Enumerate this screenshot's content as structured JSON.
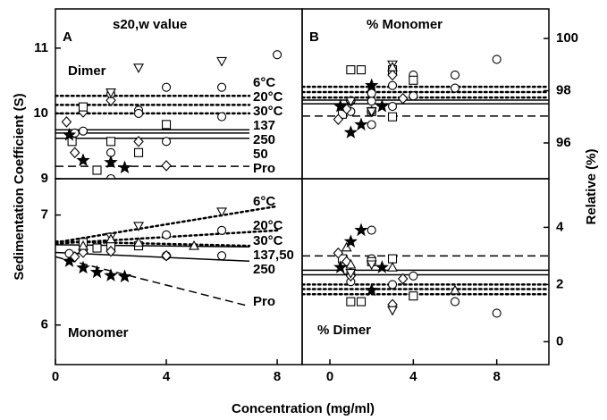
{
  "chart_data": [
    {
      "type": "scatter",
      "letter": "A",
      "title": "s20,w value",
      "region_label": "Dimer",
      "xlim": [
        0,
        8.9
      ],
      "ylim": [
        9,
        11.6
      ],
      "yticks": [
        9,
        10,
        11
      ],
      "series": [
        {
          "marker": "diamond",
          "x": [
            0.4,
            0.7,
            1.0,
            2.0,
            3.0,
            4.0
          ],
          "values": [
            9.87,
            9.4,
            10.02,
            10.2,
            9.57,
            9.2
          ]
        },
        {
          "marker": "circle",
          "x": [
            0.7,
            1.0,
            2.0,
            2.0,
            2.0,
            3.0,
            3.0,
            4.0,
            4.0,
            6.0,
            6.0,
            8.0
          ],
          "values": [
            9.7,
            9.73,
            10.3,
            9.0,
            9.4,
            10.05,
            10.0,
            10.4,
            9.57,
            10.4,
            9.95,
            10.9
          ]
        },
        {
          "marker": "square",
          "x": [
            0.6,
            1.0,
            1.5,
            2.0,
            3.0,
            4.0
          ],
          "values": [
            9.57,
            10.1,
            9.13,
            9.57,
            9.4,
            9.83
          ]
        },
        {
          "marker": "triangle-down",
          "x": [
            2.0,
            3.0,
            6.0
          ],
          "values": [
            10.32,
            10.7,
            10.8
          ]
        },
        {
          "marker": "star",
          "x": [
            0.5,
            1.0,
            2.0,
            2.5
          ],
          "values": [
            9.67,
            9.28,
            9.25,
            9.17
          ]
        }
      ],
      "lines": [
        {
          "label": "6°C",
          "style": "dotted",
          "x": [
            0,
            7
          ],
          "values": [
            10.27,
            10.27
          ]
        },
        {
          "label": "20°C",
          "style": "dotted",
          "x": [
            0,
            7
          ],
          "values": [
            10.13,
            10.13
          ]
        },
        {
          "label": "30°C",
          "style": "dotted",
          "x": [
            0,
            7
          ],
          "values": [
            10.0,
            10.0
          ]
        },
        {
          "label": "137",
          "style": "solid",
          "x": [
            0,
            7
          ],
          "values": [
            9.75,
            9.75
          ]
        },
        {
          "label": "250",
          "style": "solid",
          "x": [
            0,
            7
          ],
          "values": [
            9.7,
            9.7
          ]
        },
        {
          "label": "50",
          "style": "solid",
          "x": [
            0,
            7
          ],
          "values": [
            9.62,
            9.62
          ]
        },
        {
          "label": "Pro",
          "style": "dashed",
          "x": [
            0,
            7
          ],
          "values": [
            9.19,
            9.19
          ]
        }
      ]
    },
    {
      "type": "scatter",
      "region_label": "Monomer",
      "xlim": [
        0,
        8.9
      ],
      "ylim": [
        5.64,
        7.33
      ],
      "yticks": [
        6,
        7
      ],
      "xticks": [
        0,
        4,
        8
      ],
      "series": [
        {
          "marker": "star",
          "x": [
            0.5,
            1.0,
            1.5,
            2.0,
            2.5
          ],
          "values": [
            6.58,
            6.52,
            6.48,
            6.45,
            6.44
          ]
        },
        {
          "marker": "circle",
          "x": [
            0.5,
            1.0,
            2.0,
            3.0,
            4.0,
            4.0,
            6.0,
            6.0
          ],
          "values": [
            6.65,
            6.68,
            6.75,
            6.72,
            6.82,
            6.63,
            6.86,
            6.63
          ]
        },
        {
          "marker": "square",
          "x": [
            1.0,
            1.5,
            2.0,
            3.0
          ],
          "values": [
            6.75,
            6.7,
            6.72,
            6.72
          ]
        },
        {
          "marker": "diamond",
          "x": [
            0.7,
            1.0,
            2.0,
            4.0
          ],
          "values": [
            6.62,
            6.66,
            6.67,
            6.63
          ]
        },
        {
          "marker": "triangle-down",
          "x": [
            2.0,
            3.0,
            6.0
          ],
          "values": [
            6.8,
            6.9,
            7.03
          ]
        },
        {
          "marker": "triangle-up",
          "x": [
            1.0,
            2.0,
            3.0,
            5.0
          ],
          "values": [
            6.72,
            6.78,
            6.75,
            6.72
          ]
        }
      ],
      "lines": [
        {
          "label": "6°C",
          "style": "dotted",
          "x": [
            0,
            8
          ],
          "values": [
            6.75,
            7.08
          ]
        },
        {
          "label": "20°C",
          "style": "dotted",
          "x": [
            0,
            8
          ],
          "values": [
            6.74,
            6.86
          ]
        },
        {
          "label": "30°C",
          "style": "dotted",
          "x": [
            0,
            7
          ],
          "values": [
            6.76,
            6.72
          ]
        },
        {
          "label": "137,50",
          "style": "solid",
          "x": [
            0,
            7
          ],
          "values": [
            6.73,
            6.71
          ]
        },
        {
          "label": "250",
          "style": "solid",
          "x": [
            0,
            7
          ],
          "values": [
            6.66,
            6.58
          ]
        },
        {
          "label": "Pro",
          "style": "dashed",
          "x": [
            0,
            7
          ],
          "values": [
            6.62,
            6.17
          ]
        }
      ]
    },
    {
      "type": "scatter",
      "letter": "B",
      "title": "% Monomer",
      "xlim": [
        -1.33,
        10.5
      ],
      "ylim": [
        94.63,
        101.13
      ],
      "yticks": [
        96,
        98,
        100
      ],
      "series": [
        {
          "marker": "circle",
          "x": [
            1,
            1,
            2,
            2,
            2,
            3,
            3,
            4,
            4,
            6,
            6,
            8
          ],
          "values": [
            97.6,
            97.2,
            96.7,
            97.6,
            97.9,
            97.4,
            98.2,
            98.6,
            97.8,
            98.6,
            98.1,
            99.2
          ]
        },
        {
          "marker": "square",
          "x": [
            0.6,
            1,
            1.5,
            2,
            3,
            3,
            4
          ],
          "values": [
            97.1,
            98.8,
            98.8,
            97.2,
            98.8,
            97.0,
            98.4
          ]
        },
        {
          "marker": "diamond",
          "x": [
            0.4,
            0.8,
            1,
            2,
            3,
            3.5
          ],
          "values": [
            96.9,
            97.3,
            97.6,
            97.2,
            98.6,
            97.7
          ]
        },
        {
          "marker": "triangle-down",
          "x": [
            1,
            2,
            3
          ],
          "values": [
            97.6,
            97.2,
            99.0
          ]
        },
        {
          "marker": "triangle-up",
          "x": [
            3
          ],
          "values": [
            98.9
          ]
        },
        {
          "marker": "star",
          "x": [
            0.5,
            1,
            1.5,
            2,
            2.5
          ],
          "values": [
            97.4,
            96.4,
            96.7,
            98.2,
            97.4
          ]
        }
      ],
      "lines": [
        {
          "style": "dotted",
          "x": [
            -1.33,
            10.5
          ],
          "values": [
            98.15,
            98.15
          ]
        },
        {
          "style": "dotted",
          "x": [
            -1.33,
            10.5
          ],
          "values": [
            97.95,
            97.95
          ]
        },
        {
          "style": "dotted",
          "x": [
            -1.33,
            10.5
          ],
          "values": [
            97.74,
            97.74
          ]
        },
        {
          "style": "solid",
          "x": [
            -1.33,
            10.5
          ],
          "values": [
            97.64,
            97.64
          ]
        },
        {
          "style": "solid",
          "x": [
            -1.33,
            10.5
          ],
          "values": [
            97.5,
            97.5
          ]
        },
        {
          "style": "dashed",
          "x": [
            -1.33,
            10.5
          ],
          "values": [
            97.03,
            97.03
          ]
        }
      ]
    },
    {
      "type": "scatter",
      "region_label": "% Dimer",
      "xlim": [
        -1.33,
        10.5
      ],
      "ylim": [
        -0.8,
        5.7
      ],
      "yticks": [
        0,
        2,
        4
      ],
      "xticks": [
        0,
        4,
        8
      ],
      "series": [
        {
          "marker": "circle",
          "x": [
            0.8,
            1,
            1,
            2,
            2,
            3,
            4,
            6,
            8
          ],
          "values": [
            2.5,
            2.1,
            2.4,
            3.9,
            2.9,
            2.0,
            2.3,
            1.4,
            1.0
          ]
        },
        {
          "marker": "square",
          "x": [
            0.6,
            1,
            1.5,
            2,
            3,
            4
          ],
          "values": [
            2.9,
            1.4,
            1.4,
            2.8,
            2.9,
            1.6
          ]
        },
        {
          "marker": "diamond",
          "x": [
            0.4,
            0.8,
            1,
            3,
            3.5
          ],
          "values": [
            3.1,
            2.8,
            2.3,
            1.3,
            2.2
          ]
        },
        {
          "marker": "triangle-down",
          "x": [
            1,
            2,
            3
          ],
          "values": [
            2.4,
            2.7,
            1.1
          ]
        },
        {
          "marker": "triangle-up",
          "x": [
            0.8,
            1,
            3,
            6
          ],
          "values": [
            3.3,
            2.7,
            2.6,
            1.8
          ]
        },
        {
          "marker": "star",
          "x": [
            0.5,
            1,
            1.5,
            2,
            2.5
          ],
          "values": [
            2.6,
            3.5,
            3.9,
            1.8,
            2.6
          ]
        }
      ],
      "lines": [
        {
          "style": "dashed",
          "x": [
            -1.33,
            10.5
          ],
          "values": [
            3.0,
            3.0
          ]
        },
        {
          "style": "solid",
          "x": [
            -1.33,
            10.5
          ],
          "values": [
            2.5,
            2.5
          ]
        },
        {
          "style": "solid",
          "x": [
            -1.33,
            10.5
          ],
          "values": [
            2.34,
            2.34
          ]
        },
        {
          "style": "dotted",
          "x": [
            -1.33,
            10.5
          ],
          "values": [
            2.0,
            2.0
          ]
        },
        {
          "style": "dotted",
          "x": [
            -1.33,
            10.5
          ],
          "values": [
            1.84,
            1.84
          ]
        },
        {
          "style": "dotted",
          "x": [
            -1.33,
            10.5
          ],
          "values": [
            1.66,
            1.66
          ]
        }
      ]
    }
  ],
  "shared": {
    "xlabel": "Concentration (mg/ml)",
    "ylabel": "Sedimentation Coefficient (S)",
    "y2label": "Relative (%)"
  }
}
